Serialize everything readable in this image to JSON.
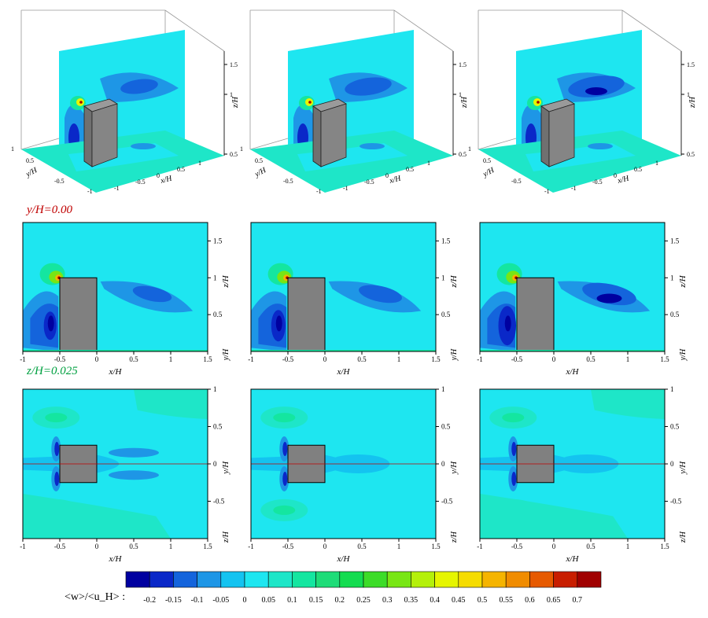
{
  "figure": {
    "section_label_1": "y/H=0.00",
    "section_label_1_color": "#c00000",
    "section_label_2": "z/H=0.025",
    "section_label_2_color": "#00a040",
    "colorbar_label": "<w>/<u_H> :"
  },
  "chart_data": [
    {
      "type": "heatmap",
      "view": "3d-perspective",
      "columns": 3,
      "xlabel": "x/H",
      "ylabel": "y/H",
      "zlabel": "z/H",
      "x_ticks": [
        "-1",
        "-0.5",
        "0",
        "0.5",
        "1"
      ],
      "y_ticks": [
        "1",
        "0.5",
        "-0.5",
        "-1"
      ],
      "z_ticks": [
        "0.5",
        "1",
        "1.5"
      ],
      "grid": false
    },
    {
      "type": "heatmap",
      "plane": "y/H=0.00",
      "columns": 3,
      "xlabel": "x/H",
      "ylabel": "z/H",
      "xlim": [
        -1,
        1.5
      ],
      "ylim": [
        0,
        1.75
      ],
      "x_ticks": [
        "-1",
        "-0.5",
        "0",
        "0.5",
        "1",
        "1.5"
      ],
      "y_ticks": [
        "0.5",
        "1",
        "1.5"
      ],
      "side_axis_label": "y/H",
      "obstacle": {
        "x": [
          -0.5,
          0
        ],
        "z": [
          0,
          1
        ]
      },
      "peak_velocity_near": {
        "x": -0.5,
        "z": 1,
        "value": 0.7
      }
    },
    {
      "type": "heatmap",
      "plane": "z/H=0.025",
      "columns": 3,
      "xlabel": "x/H",
      "ylabel": "y/H",
      "xlim": [
        -1,
        1.5
      ],
      "ylim": [
        -1,
        1
      ],
      "x_ticks": [
        "-1",
        "-0.5",
        "0",
        "0.5",
        "1",
        "1.5"
      ],
      "y_ticks": [
        "1",
        "0.5",
        "0",
        "-0.5"
      ],
      "side_axis_label": "z/H",
      "obstacle": {
        "x": [
          -0.5,
          0
        ],
        "y": [
          -0.25,
          0.25
        ]
      }
    },
    {
      "type": "colorbar",
      "label": "<w>/<u_H> :",
      "levels": [
        "-0.2",
        "-0.15",
        "-0.1",
        "-0.05",
        "0",
        "0.05",
        "0.1",
        "0.15",
        "0.2",
        "0.25",
        "0.3",
        "0.35",
        "0.4",
        "0.45",
        "0.5",
        "0.55",
        "0.6",
        "0.65",
        "0.7"
      ],
      "colors": [
        "#0000a0",
        "#0a28c8",
        "#1464dc",
        "#1e96e6",
        "#14c3f0",
        "#1ee6f0",
        "#1ee6c8",
        "#14e6a0",
        "#1edc78",
        "#14dc50",
        "#3cdc28",
        "#78e614",
        "#b4f00a",
        "#e6f500",
        "#f5dc00",
        "#f5b400",
        "#f08c00",
        "#e65a00",
        "#c81e00",
        "#a00000"
      ]
    }
  ]
}
